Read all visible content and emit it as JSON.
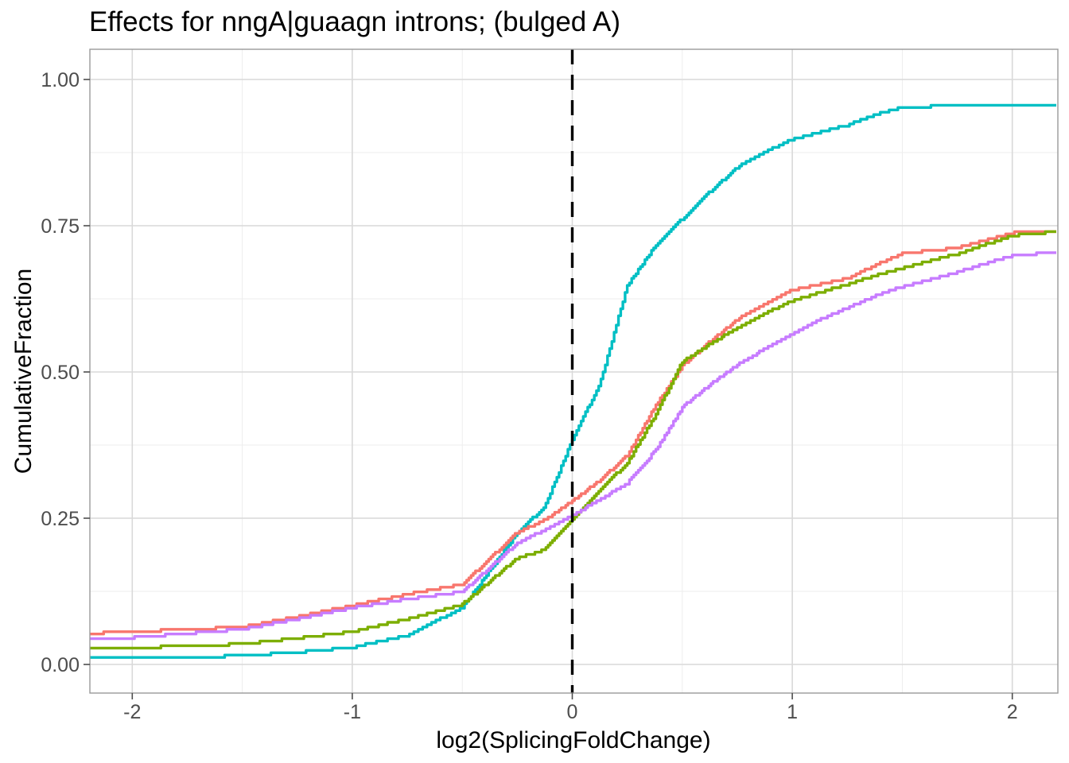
{
  "chart_data": {
    "type": "line",
    "subtype": "ecdf",
    "title": "Effects for nngA|guaagn introns; (bulged A)",
    "xlabel": "log2(SplicingFoldChange)",
    "ylabel": "CumulativeFraction",
    "xlim": [
      -2.2,
      2.2
    ],
    "ylim": [
      -0.05,
      1.05
    ],
    "grid": true,
    "legend_position": "none",
    "x_major_ticks": [
      -2,
      -1,
      0,
      1,
      2
    ],
    "x_tick_labels": [
      "-2",
      "-1",
      "0",
      "1",
      "2"
    ],
    "x_minor_ticks": [
      -1.5,
      -0.5,
      0.5,
      1.5
    ],
    "y_major_ticks": [
      0,
      0.25,
      0.5,
      0.75,
      1
    ],
    "y_tick_labels": [
      "0.00",
      "0.25",
      "0.50",
      "0.75",
      "1.00"
    ],
    "y_minor_ticks": [
      0.125,
      0.375,
      0.625,
      0.875
    ],
    "reference_line": {
      "x": 0,
      "style": "dashed",
      "color": "#000000"
    },
    "x": [
      -2.2,
      -2.0,
      -1.75,
      -1.5,
      -1.25,
      -1.0,
      -0.75,
      -0.5,
      -0.25,
      -0.125,
      0,
      0.125,
      0.25,
      0.375,
      0.5,
      0.625,
      0.75,
      0.875,
      1.0,
      1.125,
      1.25,
      1.375,
      1.5,
      1.75,
      2.0,
      2.2
    ],
    "series": [
      {
        "name": "teal",
        "color": "#00BFC4",
        "values": [
          0.01,
          0.01,
          0.012,
          0.015,
          0.021,
          0.029,
          0.05,
          0.097,
          0.225,
          0.27,
          0.385,
          0.48,
          0.648,
          0.715,
          0.762,
          0.808,
          0.85,
          0.876,
          0.898,
          0.91,
          0.922,
          0.94,
          0.952,
          0.956,
          0.958,
          0.958
        ]
      },
      {
        "name": "salmon",
        "color": "#F8766D",
        "values": [
          0.053,
          0.056,
          0.06,
          0.064,
          0.082,
          0.101,
          0.12,
          0.137,
          0.226,
          0.247,
          0.28,
          0.315,
          0.358,
          0.44,
          0.511,
          0.552,
          0.59,
          0.616,
          0.64,
          0.65,
          0.66,
          0.682,
          0.703,
          0.712,
          0.738,
          0.742
        ]
      },
      {
        "name": "olive-green",
        "color": "#7CAE00",
        "values": [
          0.029,
          0.029,
          0.031,
          0.035,
          0.045,
          0.056,
          0.078,
          0.103,
          0.182,
          0.196,
          0.25,
          0.298,
          0.345,
          0.425,
          0.518,
          0.548,
          0.575,
          0.6,
          0.622,
          0.636,
          0.65,
          0.665,
          0.678,
          0.702,
          0.733,
          0.74
        ]
      },
      {
        "name": "purple",
        "color": "#C77CFF",
        "values": [
          0.044,
          0.046,
          0.053,
          0.06,
          0.078,
          0.097,
          0.112,
          0.124,
          0.208,
          0.23,
          0.255,
          0.282,
          0.31,
          0.365,
          0.44,
          0.478,
          0.512,
          0.54,
          0.565,
          0.59,
          0.61,
          0.63,
          0.646,
          0.671,
          0.699,
          0.705
        ]
      }
    ]
  },
  "styles": {
    "background": "#FFFFFF",
    "panel_background": "#FFFFFF",
    "panel_border": "#999999",
    "grid_major": "#D9D9D9",
    "grid_minor": "#EDEDED",
    "tick_mark": "#4D4D4D",
    "tick_text": "#4D4D4D",
    "title_color": "#000000"
  }
}
